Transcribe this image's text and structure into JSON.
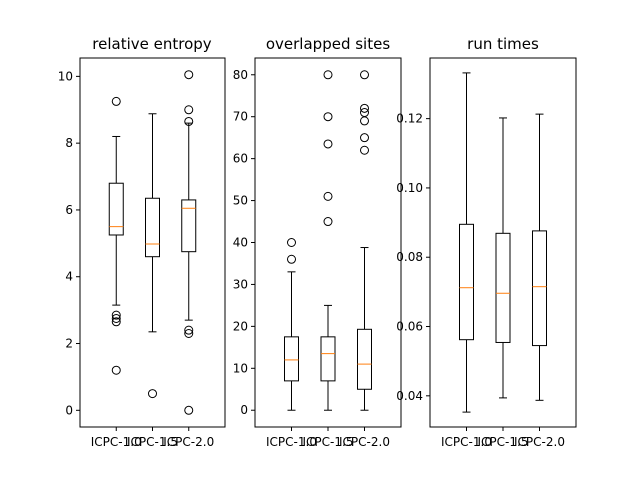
{
  "chart_data": [
    {
      "type": "box",
      "title": "relative entropy",
      "categories": [
        "ICPC-1.0",
        "ICPC-1.5",
        "ICPC-2.0"
      ],
      "ylim": [
        -0.5,
        10.55
      ],
      "yticks": [
        0,
        2,
        4,
        6,
        8,
        10
      ],
      "ytick_labels": [
        "0",
        "2",
        "4",
        "6",
        "8",
        "10"
      ],
      "boxes": [
        {
          "whisker_low": 3.15,
          "q1": 5.25,
          "median": 5.5,
          "q3": 6.8,
          "whisker_high": 8.2,
          "outliers": [
            9.25,
            2.85,
            2.75,
            2.65,
            1.2
          ]
        },
        {
          "whisker_low": 2.35,
          "q1": 4.6,
          "median": 4.98,
          "q3": 6.35,
          "whisker_high": 8.88,
          "outliers": [
            0.5
          ]
        },
        {
          "whisker_low": 2.7,
          "q1": 4.75,
          "median": 6.05,
          "q3": 6.3,
          "whisker_high": 8.6,
          "outliers": [
            10.05,
            9.0,
            8.65,
            2.4,
            2.3,
            0.0
          ]
        }
      ]
    },
    {
      "type": "box",
      "title": "overlapped sites",
      "categories": [
        "ICPC-1.0",
        "ICPC-1.5",
        "ICPC-2.0"
      ],
      "ylim": [
        -4,
        84
      ],
      "yticks": [
        0,
        10,
        20,
        30,
        40,
        50,
        60,
        70,
        80
      ],
      "ytick_labels": [
        "0",
        "10",
        "20",
        "30",
        "40",
        "50",
        "60",
        "70",
        "80"
      ],
      "boxes": [
        {
          "whisker_low": 0,
          "q1": 7,
          "median": 12,
          "q3": 17.5,
          "whisker_high": 33,
          "outliers": [
            40,
            36
          ]
        },
        {
          "whisker_low": 0,
          "q1": 7,
          "median": 13.5,
          "q3": 17.5,
          "whisker_high": 25,
          "outliers": [
            80,
            70,
            63.5,
            51,
            45
          ]
        },
        {
          "whisker_low": 0,
          "q1": 5,
          "median": 11,
          "q3": 19.3,
          "whisker_high": 38.8,
          "outliers": [
            80,
            72,
            71,
            69,
            65,
            62
          ]
        }
      ]
    },
    {
      "type": "box",
      "title": "run times",
      "categories": [
        "ICPC-1.0",
        "ICPC-1.5",
        "ICPC-2.0"
      ],
      "ylim": [
        0.031,
        0.1375
      ],
      "yticks": [
        0.04,
        0.06,
        0.08,
        0.1,
        0.12
      ],
      "ytick_labels": [
        "0.04",
        "0.06",
        "0.08",
        "0.10",
        "0.12"
      ],
      "boxes": [
        {
          "whisker_low": 0.0353,
          "q1": 0.0562,
          "median": 0.0712,
          "q3": 0.0895,
          "whisker_high": 0.1332,
          "outliers": []
        },
        {
          "whisker_low": 0.0394,
          "q1": 0.0554,
          "median": 0.0696,
          "q3": 0.0869,
          "whisker_high": 0.1202,
          "outliers": []
        },
        {
          "whisker_low": 0.0387,
          "q1": 0.0545,
          "median": 0.0715,
          "q3": 0.0876,
          "whisker_high": 0.1213,
          "outliers": []
        }
      ]
    }
  ],
  "colors": {
    "box": "#000000",
    "median": "#ff7f0e",
    "outlier_edge": "#000000",
    "background": "#ffffff"
  }
}
